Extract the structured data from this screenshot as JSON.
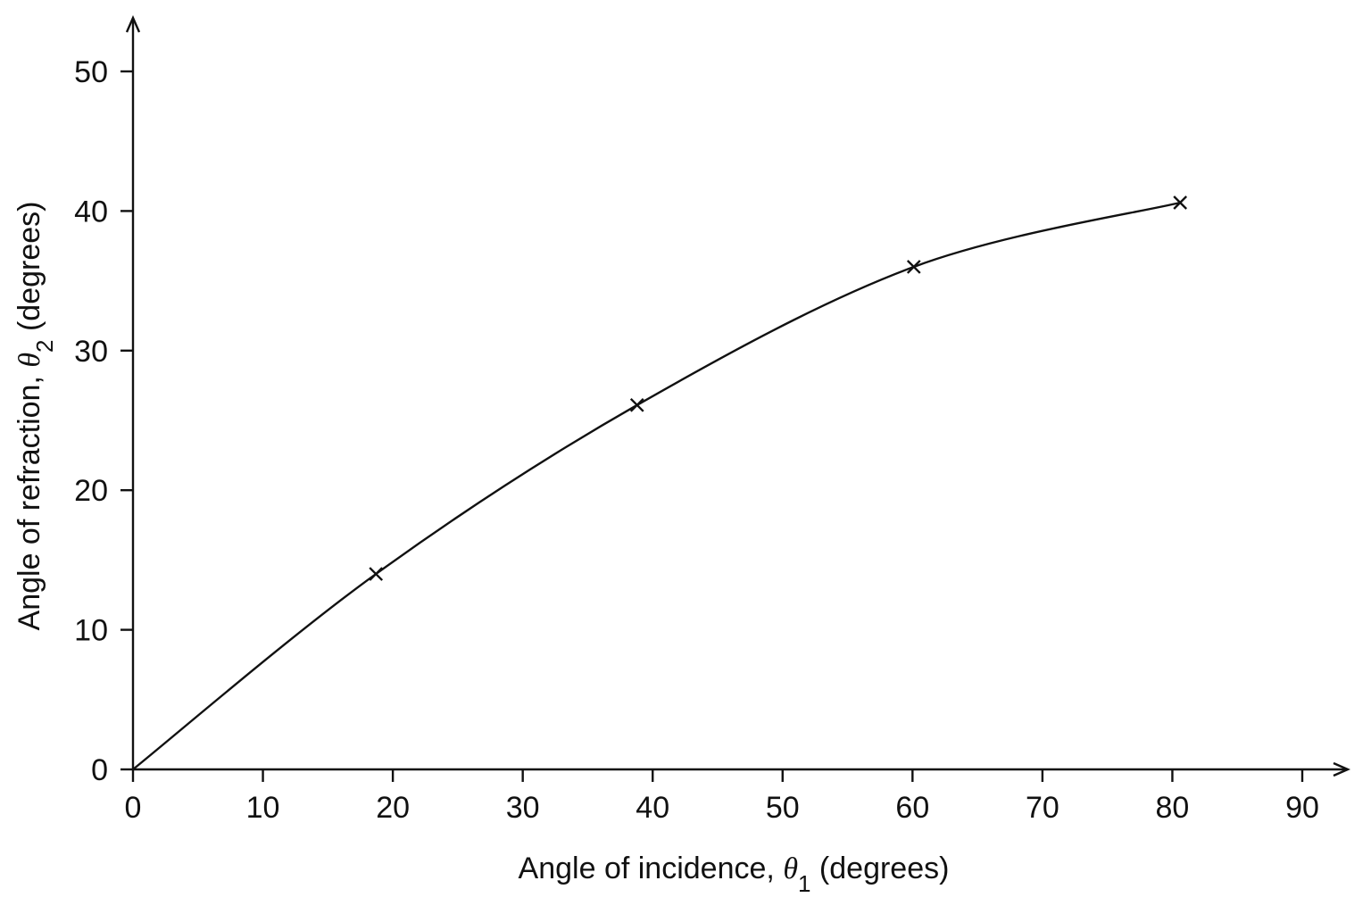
{
  "chart_data": {
    "type": "scatter",
    "title": "",
    "xlabel": {
      "prefix": "Angle of incidence, ",
      "symbol": "θ",
      "subscript": "1",
      "suffix": " (degrees)"
    },
    "ylabel": {
      "prefix": "Angle of refraction, ",
      "symbol": "θ",
      "subscript": "2",
      "suffix": " (degrees)"
    },
    "xlim": [
      0,
      90
    ],
    "ylim": [
      0,
      50
    ],
    "xticks": [
      "0",
      "10",
      "20",
      "30",
      "40",
      "50",
      "60",
      "70",
      "80",
      "90"
    ],
    "yticks": [
      "0",
      "10",
      "20",
      "30",
      "40",
      "50"
    ],
    "grid": false,
    "series": [
      {
        "points": [
          {
            "x": 18.7,
            "y": 14.0
          },
          {
            "x": 38.8,
            "y": 26.1
          },
          {
            "x": 60.1,
            "y": 36.0
          },
          {
            "x": 80.6,
            "y": 40.6
          }
        ],
        "marker": "cross",
        "fit_curve": "smooth through origin"
      }
    ],
    "colors": {
      "ink": "#111111",
      "background": "#ffffff"
    }
  }
}
